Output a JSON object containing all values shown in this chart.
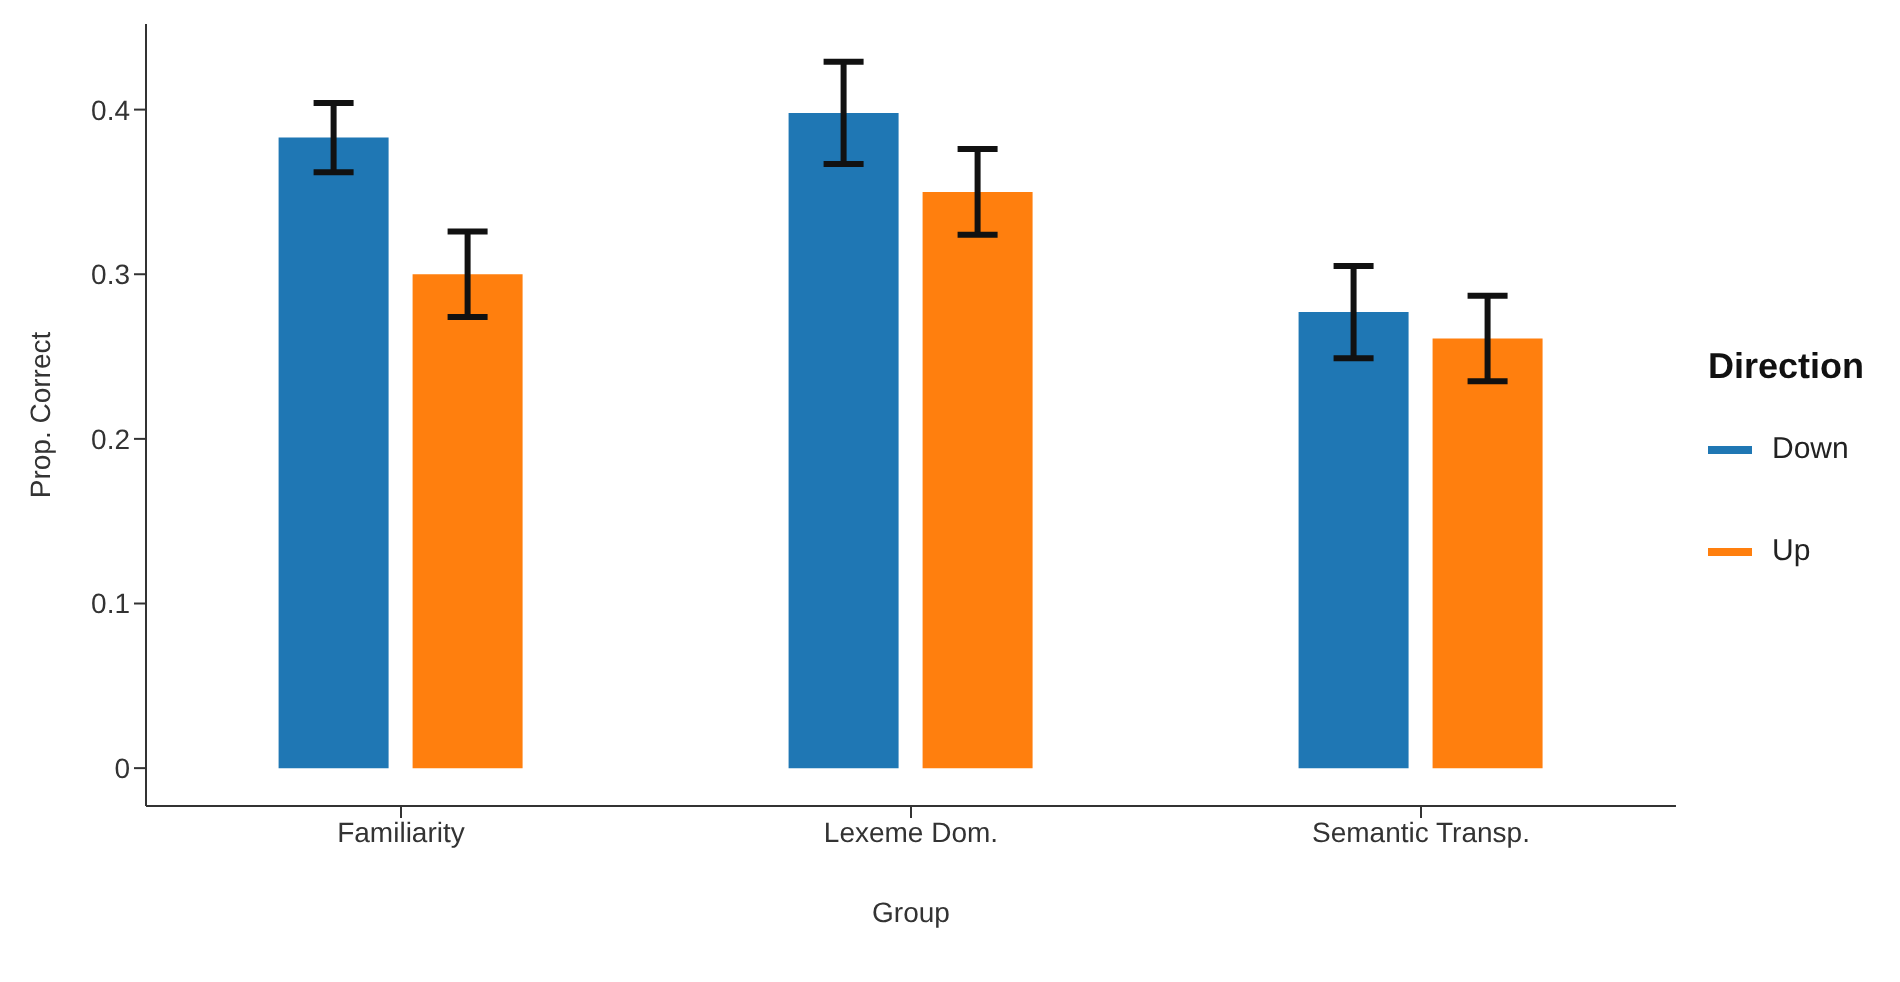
{
  "chart_data": {
    "type": "bar",
    "xlabel": "Group",
    "ylabel": "Prop. Correct",
    "legend_title": "Direction",
    "categories": [
      "Familiarity",
      "Lexeme Dom.",
      "Semantic Transp."
    ],
    "series": [
      {
        "name": "Down",
        "color": "#1f77b4",
        "values": [
          0.383,
          0.398,
          0.277
        ],
        "errors": [
          0.021,
          0.031,
          0.028
        ]
      },
      {
        "name": "Up",
        "color": "#ff7f0e",
        "values": [
          0.3,
          0.35,
          0.261
        ],
        "errors": [
          0.026,
          0.026,
          0.026
        ]
      }
    ],
    "ylim": [
      -0.023,
      0.452
    ],
    "yticks": [
      {
        "value": 0,
        "label": "0"
      },
      0.1,
      0.2,
      0.3,
      0.4
    ],
    "grid": false,
    "legend": "right"
  }
}
